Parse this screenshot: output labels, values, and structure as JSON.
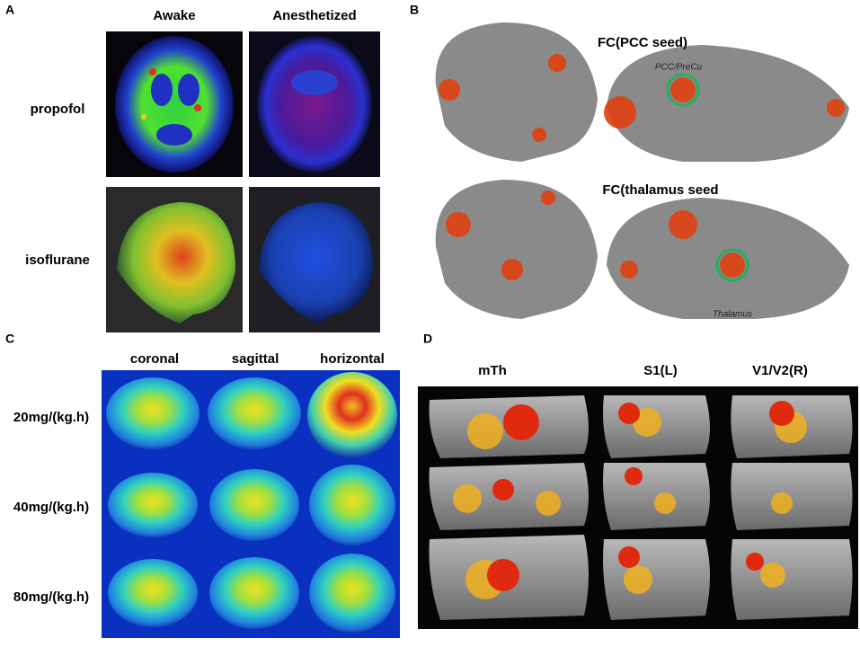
{
  "panels": [
    {
      "label": "A",
      "columns": [
        "Awake",
        "Anesthetized"
      ],
      "rows": [
        "propofol",
        "isoflurane"
      ]
    },
    {
      "label": "B",
      "maps": [
        {
          "title": "FC(PCC seed)",
          "annotation": "PCC/PreCu"
        },
        {
          "title": "FC(thalamus seed",
          "annotation": "Thalamus"
        }
      ]
    },
    {
      "label": "C",
      "columns": [
        "coronal",
        "sagittal",
        "horizontal"
      ],
      "rows": [
        "20mg/(kg.h)",
        "40mg/(kg.h)",
        "80mg/(kg.h)"
      ]
    },
    {
      "label": "D",
      "columns": [
        "mTh",
        "S1(L)",
        "V1/V2(R)"
      ]
    }
  ]
}
